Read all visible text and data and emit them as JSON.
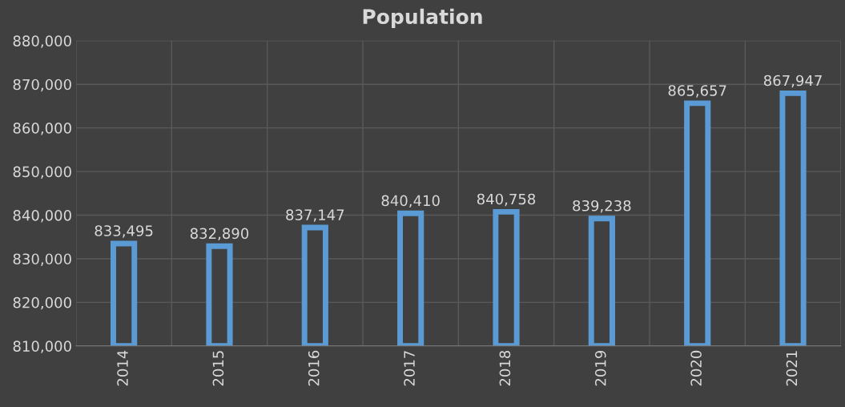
{
  "chart_data": {
    "type": "bar",
    "title": "Population",
    "categories": [
      "2014",
      "2015",
      "2016",
      "2017",
      "2018",
      "2019",
      "2020",
      "2021"
    ],
    "values": [
      833495,
      832890,
      837147,
      840410,
      840758,
      839238,
      865657,
      867947
    ],
    "color": "#5b9bd5",
    "value_labels": [
      "833,495",
      "832,890",
      "837,147",
      "840,410",
      "840,758",
      "839,238",
      "865,657",
      "867,947"
    ],
    "ylim": [
      810000,
      880000
    ],
    "yticks": [
      {
        "value": 810000,
        "label": "810,000"
      },
      {
        "value": 820000,
        "label": "820,000"
      },
      {
        "value": 830000,
        "label": "830,000"
      },
      {
        "value": 840000,
        "label": "840,000"
      },
      {
        "value": 850000,
        "label": "850,000"
      },
      {
        "value": 860000,
        "label": "860,000"
      },
      {
        "value": 870000,
        "label": "870,000"
      },
      {
        "value": 880000,
        "label": "880,000"
      }
    ],
    "grid": true
  }
}
